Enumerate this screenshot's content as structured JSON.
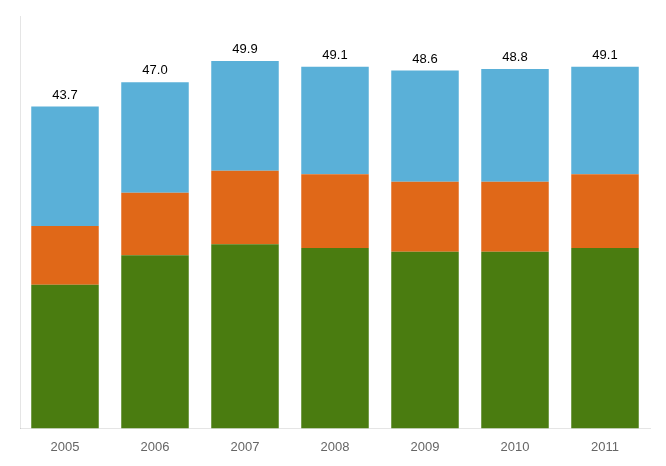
{
  "chart_data": {
    "type": "bar",
    "stacked": true,
    "categories": [
      "2005",
      "2006",
      "2007",
      "2008",
      "2009",
      "2010",
      "2011"
    ],
    "series": [
      {
        "color": "#4a7c10",
        "values": [
          19.5,
          23.5,
          25.0,
          24.5,
          24.0,
          24.0,
          24.5
        ]
      },
      {
        "color": "#e06818",
        "values": [
          8.0,
          8.5,
          10.0,
          10.0,
          9.5,
          9.5,
          10.0
        ]
      },
      {
        "color": "#5ab0d8",
        "values": [
          16.2,
          15.0,
          14.9,
          14.6,
          15.1,
          15.3,
          14.6
        ]
      }
    ],
    "totals": [
      43.7,
      47.0,
      49.9,
      49.1,
      48.6,
      48.8,
      49.1
    ],
    "total_labels": [
      "43.7",
      "47.0",
      "49.9",
      "49.1",
      "48.6",
      "48.8",
      "49.1"
    ],
    "ylim": [
      0,
      56
    ],
    "grid": false,
    "tick_labels": "x"
  }
}
